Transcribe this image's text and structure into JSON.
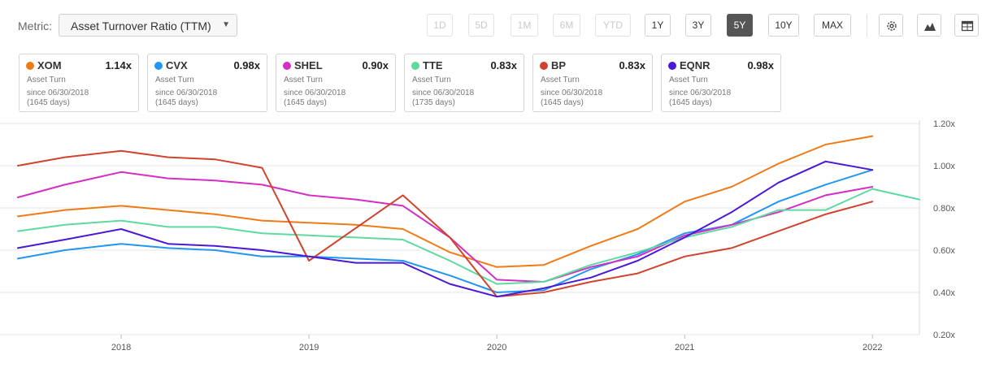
{
  "metric": {
    "label": "Metric:",
    "selected": "Asset Turnover Ratio (TTM)",
    "arrow": "▼"
  },
  "ranges": [
    {
      "label": "1D",
      "state": "disabled"
    },
    {
      "label": "5D",
      "state": "disabled"
    },
    {
      "label": "1M",
      "state": "disabled"
    },
    {
      "label": "6M",
      "state": "disabled"
    },
    {
      "label": "YTD",
      "state": "disabled"
    },
    {
      "label": "1Y",
      "state": "normal"
    },
    {
      "label": "3Y",
      "state": "normal"
    },
    {
      "label": "5Y",
      "state": "active"
    },
    {
      "label": "10Y",
      "state": "normal"
    },
    {
      "label": "MAX",
      "state": "normal"
    }
  ],
  "tools": [
    "gear-icon",
    "mountain-chart-icon",
    "table-icon"
  ],
  "cards": [
    {
      "ticker": "XOM",
      "value": "1.14x",
      "color": "#f07b16",
      "sub": "Asset Turn",
      "since": "since 06/30/2018",
      "days": "(1645 days)"
    },
    {
      "ticker": "CVX",
      "value": "0.98x",
      "color": "#2196f3",
      "sub": "Asset Turn",
      "since": "since 06/30/2018",
      "days": "(1645 days)"
    },
    {
      "ticker": "SHEL",
      "value": "0.90x",
      "color": "#d42ec4",
      "sub": "Asset Turn",
      "since": "since 06/30/2018",
      "days": "(1645 days)"
    },
    {
      "ticker": "TTE",
      "value": "0.83x",
      "color": "#5ed9a0",
      "sub": "Asset Turn",
      "since": "since 06/30/2018",
      "days": "(1735 days)"
    },
    {
      "ticker": "BP",
      "value": "0.83x",
      "color": "#d0432c",
      "sub": "Asset Turn",
      "since": "since 06/30/2018",
      "days": "(1645 days)"
    },
    {
      "ticker": "EQNR",
      "value": "0.98x",
      "color": "#4a18d6",
      "sub": "Asset Turn",
      "since": "since 06/30/2018",
      "days": "(1645 days)"
    }
  ],
  "chart_data": {
    "type": "line",
    "title": "",
    "xlabel": "",
    "ylabel": "",
    "xlim": [
      2017.45,
      2022.25
    ],
    "ylim": [
      0.2,
      1.2
    ],
    "yticks": [
      0.2,
      0.4,
      0.6,
      0.8,
      1.0,
      1.2
    ],
    "ytick_labels": [
      "0.20x",
      "0.40x",
      "0.60x",
      "0.80x",
      "1.00x",
      "1.20x"
    ],
    "xticks": [
      2018,
      2019,
      2020,
      2021,
      2022
    ],
    "xtick_labels": [
      "2018",
      "2019",
      "2020",
      "2021",
      "2022"
    ],
    "grid": true,
    "series": [
      {
        "name": "XOM",
        "color": "#f07b16",
        "x": [
          2017.45,
          2017.7,
          2018.0,
          2018.25,
          2018.5,
          2018.75,
          2019.0,
          2019.25,
          2019.5,
          2019.75,
          2020.0,
          2020.25,
          2020.5,
          2020.75,
          2021.0,
          2021.25,
          2021.5,
          2021.75,
          2022.0
        ],
        "y": [
          0.76,
          0.79,
          0.81,
          0.79,
          0.77,
          0.74,
          0.73,
          0.72,
          0.7,
          0.59,
          0.52,
          0.53,
          0.62,
          0.7,
          0.83,
          0.9,
          1.01,
          1.1,
          1.14
        ]
      },
      {
        "name": "CVX",
        "color": "#2196f3",
        "x": [
          2017.45,
          2017.7,
          2018.0,
          2018.25,
          2018.5,
          2018.75,
          2019.0,
          2019.25,
          2019.5,
          2019.75,
          2020.0,
          2020.25,
          2020.5,
          2020.75,
          2021.0,
          2021.25,
          2021.5,
          2021.75,
          2022.0
        ],
        "y": [
          0.56,
          0.6,
          0.63,
          0.61,
          0.6,
          0.57,
          0.57,
          0.56,
          0.55,
          0.48,
          0.4,
          0.41,
          0.51,
          0.58,
          0.68,
          0.72,
          0.83,
          0.91,
          0.98
        ]
      },
      {
        "name": "SHEL",
        "color": "#d42ec4",
        "x": [
          2017.45,
          2017.7,
          2018.0,
          2018.25,
          2018.5,
          2018.75,
          2019.0,
          2019.25,
          2019.5,
          2019.75,
          2020.0,
          2020.25,
          2020.5,
          2020.75,
          2021.0,
          2021.25,
          2021.5,
          2021.75,
          2022.0
        ],
        "y": [
          0.85,
          0.91,
          0.97,
          0.94,
          0.93,
          0.91,
          0.86,
          0.84,
          0.81,
          0.66,
          0.46,
          0.45,
          0.52,
          0.57,
          0.67,
          0.72,
          0.78,
          0.86,
          0.9
        ]
      },
      {
        "name": "TTE",
        "color": "#5ed9a0",
        "x": [
          2017.45,
          2017.7,
          2018.0,
          2018.25,
          2018.5,
          2018.75,
          2019.0,
          2019.25,
          2019.5,
          2019.75,
          2020.0,
          2020.25,
          2020.5,
          2020.75,
          2021.0,
          2021.25,
          2021.5,
          2021.75,
          2022.0,
          2022.25
        ],
        "y": [
          0.69,
          0.72,
          0.74,
          0.71,
          0.71,
          0.68,
          0.67,
          0.66,
          0.65,
          0.55,
          0.44,
          0.45,
          0.53,
          0.59,
          0.66,
          0.71,
          0.79,
          0.79,
          0.89,
          0.84
        ]
      },
      {
        "name": "BP",
        "color": "#d0432c",
        "x": [
          2017.45,
          2017.7,
          2018.0,
          2018.25,
          2018.5,
          2018.75,
          2019.0,
          2019.5,
          2019.75,
          2020.0,
          2020.25,
          2020.5,
          2020.75,
          2021.0,
          2021.25,
          2021.5,
          2021.75,
          2022.0
        ],
        "y": [
          1.0,
          1.04,
          1.07,
          1.04,
          1.03,
          0.99,
          0.55,
          0.86,
          0.66,
          0.38,
          0.4,
          0.45,
          0.49,
          0.57,
          0.61,
          0.69,
          0.77,
          0.83
        ]
      },
      {
        "name": "EQNR",
        "color": "#4a18d6",
        "x": [
          2017.45,
          2017.7,
          2018.0,
          2018.25,
          2018.5,
          2018.75,
          2019.0,
          2019.25,
          2019.5,
          2019.75,
          2020.0,
          2020.25,
          2020.5,
          2020.75,
          2021.0,
          2021.25,
          2021.5,
          2021.75,
          2022.0
        ],
        "y": [
          0.61,
          0.65,
          0.7,
          0.63,
          0.62,
          0.6,
          0.57,
          0.54,
          0.54,
          0.44,
          0.38,
          0.42,
          0.47,
          0.55,
          0.66,
          0.78,
          0.92,
          1.02,
          0.98
        ]
      }
    ]
  }
}
